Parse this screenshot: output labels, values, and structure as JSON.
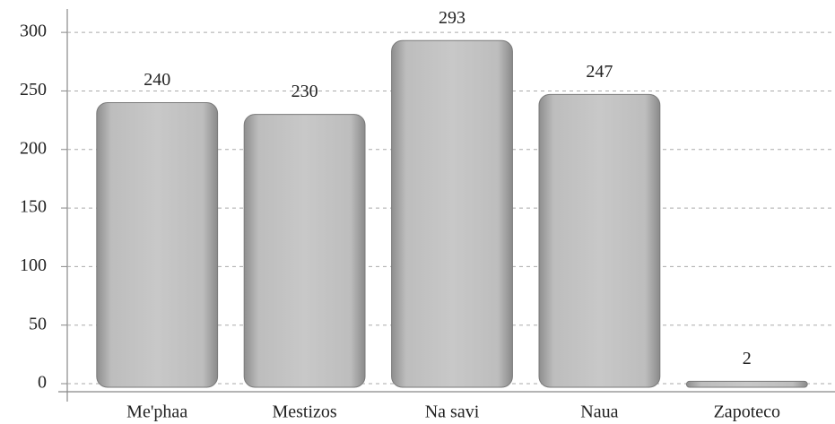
{
  "chart_data": {
    "type": "bar",
    "categories": [
      "Me'phaa",
      "Mestizos",
      "Na savi",
      "Naua",
      "Zapoteco"
    ],
    "values": [
      240,
      230,
      293,
      247,
      2
    ],
    "color": "#b4b4b4",
    "ylim": [
      0,
      320
    ],
    "yticks": [
      0,
      50,
      100,
      150,
      200,
      250,
      300
    ],
    "grid": true
  }
}
